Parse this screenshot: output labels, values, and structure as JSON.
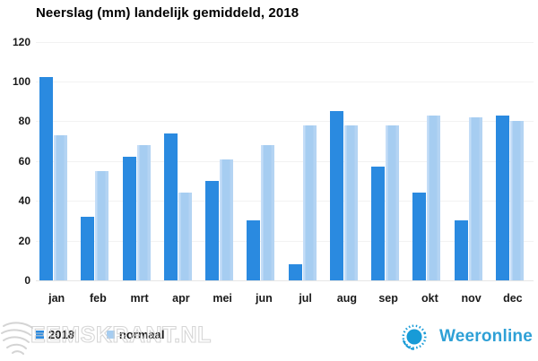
{
  "title": "Neerslag (mm) landelijk gemiddeld, 2018",
  "chart_data": {
    "type": "bar",
    "categories": [
      "jan",
      "feb",
      "mrt",
      "apr",
      "mei",
      "jun",
      "jul",
      "aug",
      "sep",
      "okt",
      "nov",
      "dec"
    ],
    "series": [
      {
        "name": "2018",
        "color": "#2a8ae0",
        "values": [
          102,
          32,
          62,
          74,
          50,
          30,
          8,
          85,
          57,
          44,
          30,
          83
        ]
      },
      {
        "name": "normaal",
        "color": "#a6cdf1",
        "values": [
          73,
          55,
          68,
          44,
          61,
          68,
          78,
          78,
          78,
          83,
          82,
          80
        ]
      }
    ],
    "title": "Neerslag (mm) landelijk gemiddeld, 2018",
    "xlabel": "",
    "ylabel": "",
    "ylim": [
      0,
      120
    ],
    "ytick_step": 20,
    "grid": true,
    "legend_position": "bottom-left"
  },
  "colors": {
    "gridline": "#f2f2f2",
    "axis_line": "#e6e6e6",
    "label_text": "#1a1a1a",
    "brand_blue": "#2ea0d6",
    "sun_blue": "#189bd7",
    "watermark_gray": "#cfcfcf"
  },
  "branding": {
    "logo_text": "Weeronline"
  },
  "watermark": {
    "text": "EEMSKRANT.NL"
  }
}
